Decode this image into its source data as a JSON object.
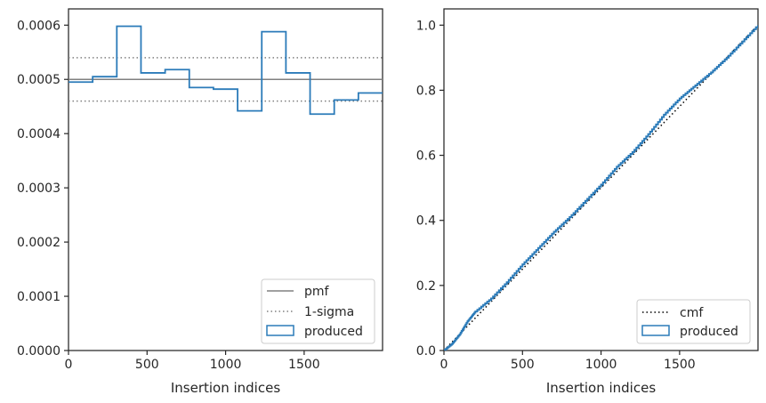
{
  "chart_data": [
    {
      "type": "line",
      "xlabel": "Insertion indices",
      "ylabel": "",
      "xlim": [
        0,
        1999
      ],
      "ylim": [
        0,
        0.00063
      ],
      "x_ticks": [
        0,
        500,
        1000,
        1500
      ],
      "x_tick_labels": [
        "0",
        "500",
        "1000",
        "1500"
      ],
      "y_ticks": [
        0,
        0.0001,
        0.0002,
        0.0003,
        0.0004,
        0.0005,
        0.0006
      ],
      "y_tick_labels": [
        "0.0000",
        "0.0001",
        "0.0002",
        "0.0003",
        "0.0004",
        "0.0005",
        "0.0006"
      ],
      "grid": false,
      "legend_placement": "lower-right",
      "series": [
        {
          "name": "pmf",
          "style": "solid",
          "color": "#808080",
          "y": 0.0005
        },
        {
          "name": "1-sigma",
          "style": "dotted",
          "color": "#808080",
          "y_values": [
            0.00046,
            0.00054
          ]
        },
        {
          "name": "produced",
          "style": "step-histogram",
          "color": "#2b7bb9",
          "bin_edges": [
            0,
            153.8,
            307.5,
            461.3,
            615.1,
            768.8,
            922.6,
            1076.4,
            1230.2,
            1383.9,
            1537.7,
            1691.5,
            1845.2,
            1999
          ],
          "values": [
            0.000495,
            0.000505,
            0.000598,
            0.000512,
            0.000518,
            0.000485,
            0.000482,
            0.000442,
            0.000588,
            0.000512,
            0.000436,
            0.000462,
            0.000475
          ]
        }
      ]
    },
    {
      "type": "line",
      "xlabel": "Insertion indices",
      "ylabel": "",
      "xlim": [
        0,
        1999
      ],
      "ylim": [
        0,
        1.05
      ],
      "x_ticks": [
        0,
        500,
        1000,
        1500
      ],
      "x_tick_labels": [
        "0",
        "500",
        "1000",
        "1500"
      ],
      "y_ticks": [
        0,
        0.2,
        0.4,
        0.6,
        0.8,
        1.0
      ],
      "y_tick_labels": [
        "0.0",
        "0.2",
        "0.4",
        "0.6",
        "0.8",
        "1.0"
      ],
      "grid": false,
      "legend_placement": "lower-right",
      "series": [
        {
          "name": "cmf",
          "style": "dotted",
          "color": "#000000",
          "x": [
            0,
            1999
          ],
          "values": [
            0,
            1
          ]
        },
        {
          "name": "produced",
          "style": "step",
          "color": "#2b7bb9",
          "x": [
            0,
            50,
            100,
            150,
            200,
            300,
            400,
            500,
            600,
            700,
            800,
            900,
            1000,
            1100,
            1200,
            1300,
            1400,
            1500,
            1600,
            1700,
            1800,
            1900,
            1999
          ],
          "values": [
            0,
            0.02,
            0.05,
            0.09,
            0.12,
            0.16,
            0.21,
            0.265,
            0.315,
            0.365,
            0.41,
            0.46,
            0.51,
            0.565,
            0.61,
            0.665,
            0.725,
            0.775,
            0.815,
            0.855,
            0.9,
            0.95,
            1.0
          ]
        }
      ]
    }
  ]
}
